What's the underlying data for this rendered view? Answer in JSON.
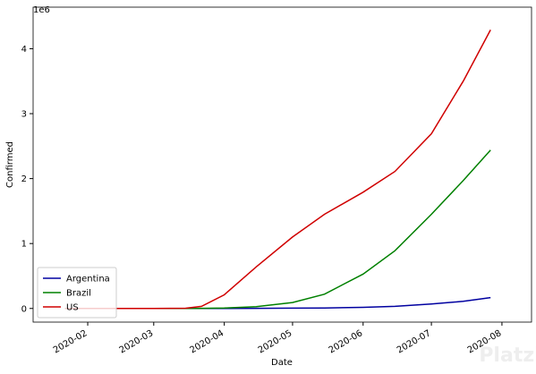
{
  "chart_data": {
    "type": "line",
    "xlabel": "Date",
    "ylabel": "Confirmed",
    "y_offset_label": "1e6",
    "x": [
      "2020-01-22",
      "2020-02-15",
      "2020-03-01",
      "2020-03-15",
      "2020-03-22",
      "2020-04-01",
      "2020-04-15",
      "2020-05-01",
      "2020-05-15",
      "2020-06-01",
      "2020-06-15",
      "2020-07-01",
      "2020-07-15",
      "2020-07-27"
    ],
    "series": [
      {
        "name": "Argentina",
        "color": "#0000a0",
        "values": [
          0,
          0,
          0,
          5e-05,
          0.00027,
          0.001,
          0.0025,
          0.0045,
          0.0073,
          0.017,
          0.032,
          0.068,
          0.11,
          0.167
        ]
      },
      {
        "name": "Brazil",
        "color": "#008000",
        "values": [
          0,
          0,
          2e-06,
          0.0002,
          0.0015,
          0.0068,
          0.028,
          0.092,
          0.22,
          0.53,
          0.89,
          1.45,
          1.97,
          2.44
        ]
      },
      {
        "name": "US",
        "color": "#d00000",
        "values": [
          0,
          1.5e-05,
          7e-05,
          0.0035,
          0.033,
          0.21,
          0.64,
          1.1,
          1.45,
          1.79,
          2.11,
          2.69,
          3.5,
          4.29
        ]
      }
    ],
    "xlim": [
      "2020-01-08",
      "2020-08-14"
    ],
    "xticks": [
      {
        "value": "2020-02-01",
        "label": "2020-02"
      },
      {
        "value": "2020-03-01",
        "label": "2020-03"
      },
      {
        "value": "2020-04-01",
        "label": "2020-04"
      },
      {
        "value": "2020-05-01",
        "label": "2020-05"
      },
      {
        "value": "2020-06-01",
        "label": "2020-06"
      },
      {
        "value": "2020-07-01",
        "label": "2020-07"
      },
      {
        "value": "2020-08-01",
        "label": "2020-08"
      }
    ],
    "ylim": [
      -0.21,
      4.64
    ],
    "yticks": [
      0,
      1,
      2,
      3,
      4
    ],
    "grid": false,
    "legend": "lower left",
    "watermark": "Platzi"
  }
}
